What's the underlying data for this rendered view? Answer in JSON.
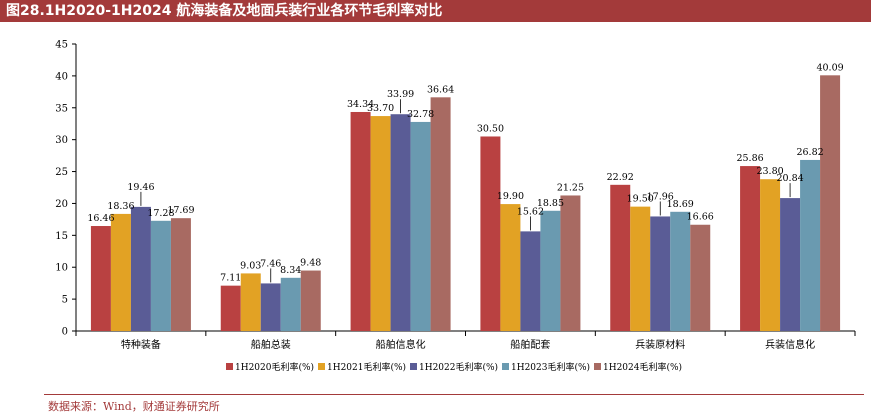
{
  "figure_title": "图28.1H2020-1H2024 航海装备及地面兵装行业各环节毛利率对比",
  "source": "数据来源：Wind，财通证券研究所",
  "chart_data": {
    "type": "bar",
    "title": "",
    "xlabel": "",
    "ylabel": "",
    "ylim": [
      0,
      45
    ],
    "yticks": [
      "0",
      "5",
      "10",
      "15",
      "20",
      "25",
      "30",
      "35",
      "40",
      "45"
    ],
    "categories": [
      "特种装备",
      "船舶总装",
      "船舶信息化",
      "船舶配套",
      "兵装原材料",
      "兵装信息化"
    ],
    "grid": false,
    "legend_position": "bottom",
    "series": [
      {
        "name": "1H2020毛利率(%)",
        "color": "#b94141",
        "values": [
          16.46,
          7.11,
          34.34,
          30.5,
          22.92,
          25.86
        ],
        "labels": [
          "16.46",
          "7.11",
          "34.34",
          "30.50",
          "22.92",
          "25.86"
        ]
      },
      {
        "name": "1H2021毛利率(%)",
        "color": "#e2a224",
        "values": [
          18.36,
          9.03,
          33.7,
          19.9,
          19.5,
          23.8
        ],
        "labels": [
          "18.36",
          "9.03",
          "33.70",
          "19.90",
          "19.50",
          "23.80"
        ]
      },
      {
        "name": "1H2022毛利率(%)",
        "color": "#5a5c96",
        "values": [
          19.46,
          7.46,
          33.99,
          15.62,
          17.96,
          20.84
        ],
        "labels": [
          "19.46",
          "7.46",
          "33.99",
          "15.62",
          "17.96",
          "20.84"
        ]
      },
      {
        "name": "1H2023毛利率(%)",
        "color": "#6a9ab0",
        "values": [
          17.28,
          8.34,
          32.78,
          18.85,
          18.69,
          26.82
        ],
        "labels": [
          "17.28",
          "8.34",
          "32.78",
          "18.85",
          "18.69",
          "26.82"
        ]
      },
      {
        "name": "1H2024毛利率(%)",
        "color": "#a86a62",
        "values": [
          17.69,
          9.48,
          36.64,
          21.25,
          16.66,
          40.09
        ],
        "labels": [
          "17.69",
          "9.48",
          "36.64",
          "21.25",
          "16.66",
          "40.09"
        ]
      }
    ]
  }
}
